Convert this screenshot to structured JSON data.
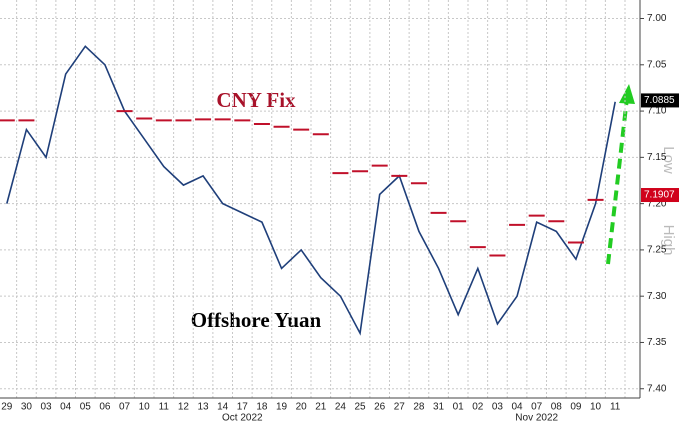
{
  "chart_data": {
    "type": "line",
    "annotations": {
      "fix": "CNY Fix",
      "offshore": "Offshore Yuan",
      "low": "Low",
      "high": "High"
    },
    "months": [
      {
        "label": "Oct 2022",
        "at": 12
      },
      {
        "label": "Nov 2022",
        "at": 27
      }
    ],
    "categories": [
      "29",
      "30",
      "03",
      "04",
      "05",
      "06",
      "07",
      "10",
      "11",
      "12",
      "13",
      "14",
      "17",
      "18",
      "19",
      "20",
      "21",
      "24",
      "25",
      "26",
      "27",
      "28",
      "31",
      "01",
      "02",
      "03",
      "04",
      "07",
      "08",
      "09",
      "10",
      "11"
    ],
    "series": [
      {
        "name": "Offshore Yuan",
        "color": "#1f3f7a",
        "values": [
          7.2,
          7.12,
          7.15,
          7.06,
          7.03,
          7.05,
          7.1,
          7.13,
          7.16,
          7.18,
          7.17,
          7.2,
          7.21,
          7.22,
          7.27,
          7.25,
          7.28,
          7.3,
          7.34,
          7.19,
          7.17,
          7.23,
          7.27,
          7.32,
          7.27,
          7.33,
          7.3,
          7.22,
          7.23,
          7.26,
          7.2,
          7.09
        ]
      },
      {
        "name": "CNY Fix",
        "color": "#c0102a",
        "values": [
          7.11,
          7.11,
          null,
          null,
          null,
          null,
          7.1,
          7.108,
          7.11,
          7.11,
          7.109,
          7.109,
          7.11,
          7.114,
          7.117,
          7.12,
          7.125,
          7.167,
          7.165,
          7.159,
          7.17,
          7.178,
          7.21,
          7.219,
          7.247,
          7.256,
          7.223,
          7.213,
          7.219,
          7.242,
          7.196,
          null
        ]
      }
    ],
    "markers": [
      {
        "value": 7.0885,
        "color": "#000000"
      },
      {
        "value": 7.1907,
        "color": "#d0021b"
      }
    ],
    "ylim": [
      6.98,
      7.41
    ],
    "y_inverted": true,
    "yticks": [
      {
        "value": 7,
        "label": "7.00"
      },
      7.05,
      {
        "value": 7.1,
        "label": "7.10"
      },
      7.15,
      {
        "value": 7.2,
        "label": "7.20"
      },
      7.25,
      {
        "value": 7.3,
        "label": "7.30"
      },
      7.35,
      {
        "value": 7.4,
        "label": "7.40"
      }
    ],
    "grid": true
  }
}
